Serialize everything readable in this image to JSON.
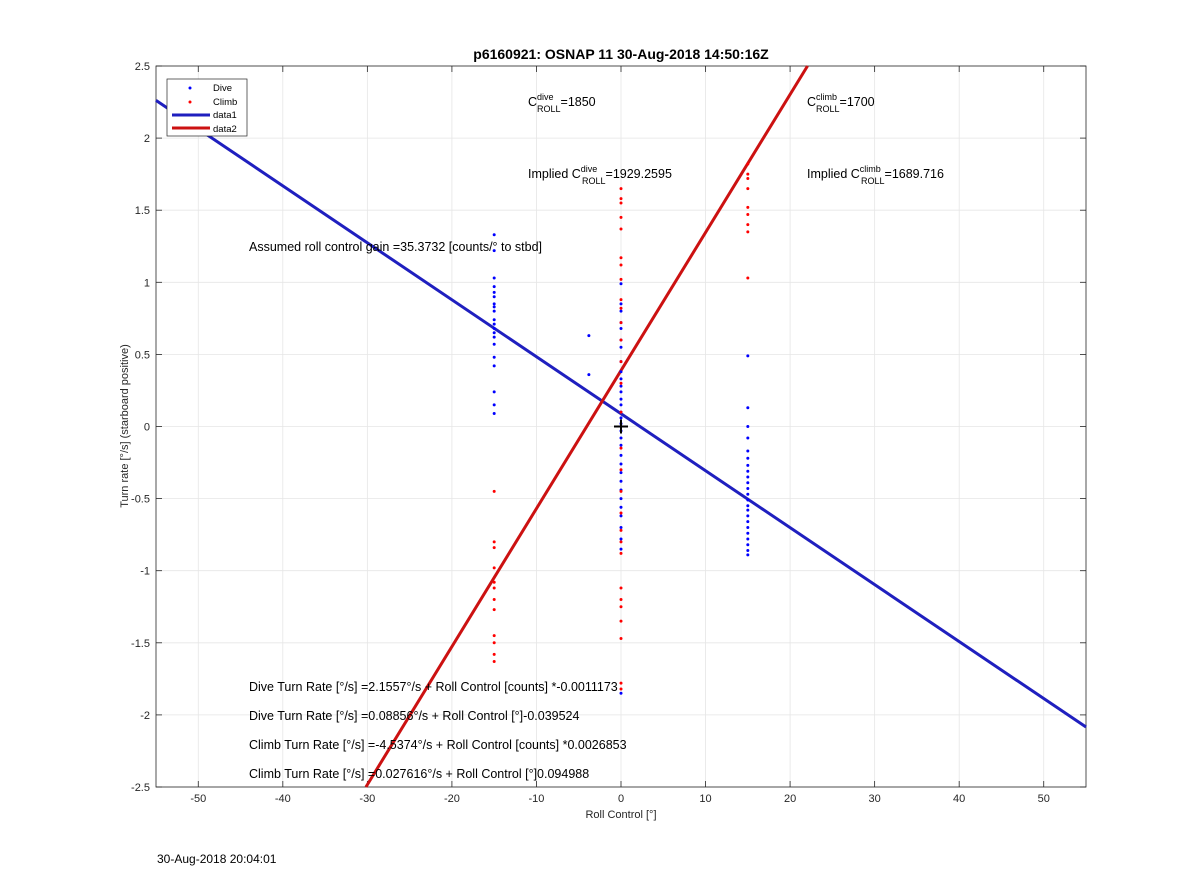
{
  "chart_data": {
    "type": "scatter",
    "title": "p6160921: OSNAP 11 30-Aug-2018 14:50:16Z",
    "xlabel": "Roll Control [°]",
    "ylabel": "Turn rate [°/s] (starboard positive)",
    "xlim": [
      -55,
      55
    ],
    "ylim": [
      -2.5,
      2.5
    ],
    "xticks": [
      -50,
      -40,
      -30,
      -20,
      -10,
      0,
      10,
      20,
      30,
      40,
      50
    ],
    "yticks": [
      -2.5,
      -2,
      -1.5,
      -1,
      -0.5,
      0,
      0.5,
      1,
      1.5,
      2,
      2.5
    ],
    "grid": true,
    "legend": {
      "position": "top-left",
      "entries": [
        "Dive",
        "Climb",
        "data1",
        "data2"
      ]
    },
    "colors": {
      "dive": "#0000ff",
      "climb": "#ff0000",
      "data1": "#1f1fbf",
      "data2": "#cc1111"
    },
    "series": [
      {
        "name": "Dive",
        "mode": "markers",
        "points": [
          [
            -15,
            1.33
          ],
          [
            -15,
            1.22
          ],
          [
            -15,
            1.03
          ],
          [
            -15,
            0.97
          ],
          [
            -15,
            0.93
          ],
          [
            -15,
            0.9
          ],
          [
            -15,
            0.85
          ],
          [
            -15,
            0.83
          ],
          [
            -15,
            0.8
          ],
          [
            -15,
            0.74
          ],
          [
            -15,
            0.71
          ],
          [
            -15,
            0.68
          ],
          [
            -15,
            0.65
          ],
          [
            -15,
            0.62
          ],
          [
            -15,
            0.57
          ],
          [
            -15,
            0.48
          ],
          [
            -15,
            0.42
          ],
          [
            -15,
            0.24
          ],
          [
            -15,
            0.15
          ],
          [
            -15,
            0.09
          ],
          [
            -3.8,
            0.63
          ],
          [
            -3.8,
            0.36
          ],
          [
            0,
            0.99
          ],
          [
            0,
            0.85
          ],
          [
            0,
            0.8
          ],
          [
            0,
            0.72
          ],
          [
            0,
            0.68
          ],
          [
            0,
            0.6
          ],
          [
            0,
            0.55
          ],
          [
            0,
            0.45
          ],
          [
            0,
            0.38
          ],
          [
            0,
            0.33
          ],
          [
            0,
            0.28
          ],
          [
            0,
            0.24
          ],
          [
            0,
            0.19
          ],
          [
            0,
            0.15
          ],
          [
            0,
            0.1
          ],
          [
            0,
            0.06
          ],
          [
            0,
            0.02
          ],
          [
            0,
            -0.03
          ],
          [
            0,
            -0.08
          ],
          [
            0,
            -0.13
          ],
          [
            0,
            -0.2
          ],
          [
            0,
            -0.26
          ],
          [
            0,
            -0.32
          ],
          [
            0,
            -0.38
          ],
          [
            0,
            -0.44
          ],
          [
            0,
            -0.5
          ],
          [
            0,
            -0.56
          ],
          [
            0,
            -0.62
          ],
          [
            0,
            -0.7
          ],
          [
            0,
            -0.78
          ],
          [
            0,
            -0.85
          ],
          [
            0,
            -1.85
          ],
          [
            15,
            0.49
          ],
          [
            15,
            0.13
          ],
          [
            15,
            0.0
          ],
          [
            15,
            -0.08
          ],
          [
            15,
            -0.17
          ],
          [
            15,
            -0.22
          ],
          [
            15,
            -0.27
          ],
          [
            15,
            -0.31
          ],
          [
            15,
            -0.35
          ],
          [
            15,
            -0.39
          ],
          [
            15,
            -0.43
          ],
          [
            15,
            -0.47
          ],
          [
            15,
            -0.51
          ],
          [
            15,
            -0.55
          ],
          [
            15,
            -0.58
          ],
          [
            15,
            -0.62
          ],
          [
            15,
            -0.66
          ],
          [
            15,
            -0.7
          ],
          [
            15,
            -0.74
          ],
          [
            15,
            -0.78
          ],
          [
            15,
            -0.82
          ],
          [
            15,
            -0.86
          ],
          [
            15,
            -0.89
          ]
        ]
      },
      {
        "name": "Climb",
        "mode": "markers",
        "points": [
          [
            -15,
            -0.45
          ],
          [
            -15,
            -0.8
          ],
          [
            -15,
            -0.84
          ],
          [
            -15,
            -0.98
          ],
          [
            -15,
            -1.08
          ],
          [
            -15,
            -1.12
          ],
          [
            -15,
            -1.2
          ],
          [
            -15,
            -1.27
          ],
          [
            -15,
            -1.45
          ],
          [
            -15,
            -1.5
          ],
          [
            -15,
            -1.58
          ],
          [
            -15,
            -1.63
          ],
          [
            0,
            1.65
          ],
          [
            0,
            1.58
          ],
          [
            0,
            1.55
          ],
          [
            0,
            1.45
          ],
          [
            0,
            1.37
          ],
          [
            0,
            1.17
          ],
          [
            0,
            1.12
          ],
          [
            0,
            1.02
          ],
          [
            0,
            0.88
          ],
          [
            0,
            0.82
          ],
          [
            0,
            0.72
          ],
          [
            0,
            0.6
          ],
          [
            0,
            0.45
          ],
          [
            0,
            0.3
          ],
          [
            0,
            0.1
          ],
          [
            0,
            -0.15
          ],
          [
            0,
            -0.3
          ],
          [
            0,
            -0.45
          ],
          [
            0,
            -0.6
          ],
          [
            0,
            -0.72
          ],
          [
            0,
            -0.8
          ],
          [
            0,
            -0.88
          ],
          [
            0,
            -1.12
          ],
          [
            0,
            -1.2
          ],
          [
            0,
            -1.25
          ],
          [
            0,
            -1.35
          ],
          [
            0,
            -1.47
          ],
          [
            0,
            -1.78
          ],
          [
            0,
            -1.82
          ],
          [
            15,
            1.82
          ],
          [
            15,
            1.75
          ],
          [
            15,
            1.72
          ],
          [
            15,
            1.65
          ],
          [
            15,
            1.52
          ],
          [
            15,
            1.47
          ],
          [
            15,
            1.4
          ],
          [
            15,
            1.35
          ],
          [
            15,
            1.03
          ]
        ]
      },
      {
        "name": "data1",
        "mode": "line",
        "points": [
          [
            -55,
            2.2614
          ],
          [
            55,
            -2.0841
          ]
        ]
      },
      {
        "name": "data2",
        "mode": "line",
        "points": [
          [
            -30.17,
            -2.5
          ],
          [
            22.06,
            2.5
          ]
        ]
      }
    ],
    "markers": [
      {
        "type": "plus",
        "x": 0,
        "y": 0,
        "color": "#000000"
      }
    ],
    "annotations": {
      "c_dive": {
        "base": "C",
        "sup": "dive",
        "sub": "ROLL",
        "value": "=1850"
      },
      "c_climb": {
        "base": "C",
        "sup": "climb",
        "sub": "ROLL",
        "value": "=1700"
      },
      "implied_dive": {
        "prefix": "Implied C",
        "sup": "dive",
        "sub": "ROLL",
        "value": "=1929.2595"
      },
      "implied_climb": {
        "prefix": "Implied C",
        "sup": "climb",
        "sub": "ROLL",
        "value": "=1689.716"
      },
      "gain": "Assumed roll control gain =35.3732 [counts/° to stbd]",
      "eq1": "Dive Turn Rate [°/s] =2.1557°/s + Roll Control [counts] *-0.0011173",
      "eq2": "Dive Turn Rate [°/s] =0.08856°/s + Roll Control [°]-0.039524",
      "eq3": "Climb Turn Rate [°/s] =-4.5374°/s + Roll Control [counts] *0.0026853",
      "eq4": "Climb Turn Rate [°/s] =0.027616°/s + Roll Control [°]0.094988"
    }
  },
  "footer": "30-Aug-2018 20:04:01"
}
